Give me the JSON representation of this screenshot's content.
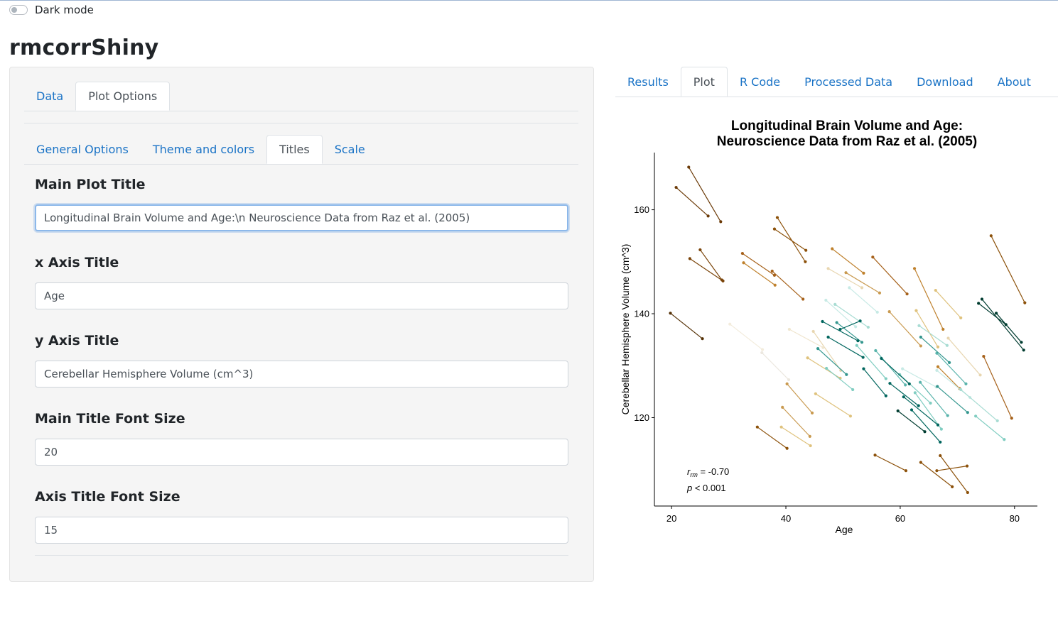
{
  "dark_mode": {
    "label": "Dark mode",
    "enabled": false
  },
  "app_title": "rmcorrShiny",
  "sidebar": {
    "tabs": [
      "Data",
      "Plot Options"
    ],
    "active_tab": "Plot Options",
    "subtabs": [
      "General Options",
      "Theme and colors",
      "Titles",
      "Scale"
    ],
    "active_subtab": "Titles",
    "fields": {
      "main_title": {
        "label": "Main Plot Title",
        "value": "Longitudinal Brain Volume and Age:\\n Neuroscience Data from Raz et al. (2005)"
      },
      "x_title": {
        "label": "x Axis Title",
        "value": "Age"
      },
      "y_title": {
        "label": "y Axis Title",
        "value": "Cerebellar Hemisphere Volume (cm^3)"
      },
      "main_font": {
        "label": "Main Title Font Size",
        "value": "20"
      },
      "axis_font": {
        "label": "Axis Title Font Size",
        "value": "15"
      }
    }
  },
  "main_tabs": [
    "Results",
    "Plot",
    "R Code",
    "Processed Data",
    "Download",
    "About"
  ],
  "active_main_tab": "Plot",
  "colors": {
    "link": "#1a73c6",
    "focus": "#8cb8ea"
  },
  "chart_data": {
    "type": "scatter",
    "title_lines": [
      "Longitudinal Brain Volume and Age:",
      "Neuroscience Data from Raz et al. (2005)"
    ],
    "xlabel": "Age",
    "ylabel": "Cerebellar Hemisphere Volume (cm^3)",
    "xlim": [
      17,
      84
    ],
    "ylim": [
      103,
      171
    ],
    "xticks": [
      20,
      40,
      60,
      80
    ],
    "yticks": [
      120,
      140,
      160
    ],
    "grid": false,
    "annotation": {
      "r_label": "r",
      "r_sub": "rm",
      "r_value": " = -0.70",
      "p_label": "p",
      "p_value": " < 0.001"
    },
    "series": [
      {
        "color": "#543005",
        "x": [
          19.8,
          25.4
        ],
        "y": [
          140.1,
          135.2
        ]
      },
      {
        "color": "#6b3a07",
        "x": [
          20.8,
          26.4
        ],
        "y": [
          164.3,
          158.8
        ]
      },
      {
        "color": "#6b3a07",
        "x": [
          23.0,
          28.6
        ],
        "y": [
          168.2,
          157.7
        ]
      },
      {
        "color": "#7a4409",
        "x": [
          25.0,
          28.8
        ],
        "y": [
          152.3,
          146.5
        ]
      },
      {
        "color": "#7a4409",
        "x": [
          23.2,
          29.0
        ],
        "y": [
          150.6,
          146.3
        ]
      },
      {
        "color": "#8c510a",
        "x": [
          38.5,
          43.4
        ],
        "y": [
          158.5,
          150.0
        ]
      },
      {
        "color": "#8c510a",
        "x": [
          38.0,
          43.5
        ],
        "y": [
          156.3,
          152.2
        ]
      },
      {
        "color": "#8c510a",
        "x": [
          35.0,
          40.2
        ],
        "y": [
          118.2,
          114.1
        ]
      },
      {
        "color": "#8c510a",
        "x": [
          55.6,
          61.0
        ],
        "y": [
          112.8,
          109.8
        ]
      },
      {
        "color": "#8c510a",
        "x": [
          63.6,
          69.1
        ],
        "y": [
          111.4,
          106.7
        ]
      },
      {
        "color": "#8c510a",
        "x": [
          67.0,
          71.8
        ],
        "y": [
          112.7,
          105.6
        ]
      },
      {
        "color": "#8c510a",
        "x": [
          66.4,
          71.7
        ],
        "y": [
          109.8,
          110.7
        ]
      },
      {
        "color": "#8c510a",
        "x": [
          75.9,
          81.8
        ],
        "y": [
          155.0,
          142.1
        ]
      },
      {
        "color": "#a6611a",
        "x": [
          74.6,
          79.5
        ],
        "y": [
          131.8,
          119.9
        ]
      },
      {
        "color": "#a6611a",
        "x": [
          32.4,
          38.0
        ],
        "y": [
          151.6,
          147.4
        ]
      },
      {
        "color": "#a6611a",
        "x": [
          37.6,
          43.0
        ],
        "y": [
          148.2,
          142.8
        ]
      },
      {
        "color": "#a6611a",
        "x": [
          55.2,
          61.2
        ],
        "y": [
          150.9,
          143.8
        ]
      },
      {
        "color": "#bf812d",
        "x": [
          48.1,
          53.6
        ],
        "y": [
          152.5,
          147.8
        ]
      },
      {
        "color": "#bf812d",
        "x": [
          32.6,
          38.1
        ],
        "y": [
          149.8,
          145.5
        ]
      },
      {
        "color": "#bf812d",
        "x": [
          62.5,
          67.5
        ],
        "y": [
          148.7,
          137.0
        ]
      },
      {
        "color": "#bf812d",
        "x": [
          66.6,
          70.4
        ],
        "y": [
          129.8,
          125.6
        ]
      },
      {
        "color": "#c99a50",
        "x": [
          50.5,
          56.4
        ],
        "y": [
          147.9,
          144.0
        ]
      },
      {
        "color": "#c99a50",
        "x": [
          58.1,
          63.6
        ],
        "y": [
          140.4,
          133.8
        ]
      },
      {
        "color": "#c99a50",
        "x": [
          40.2,
          44.6
        ],
        "y": [
          126.5,
          120.9
        ]
      },
      {
        "color": "#c99a50",
        "x": [
          39.4,
          44.2
        ],
        "y": [
          122.0,
          116.4
        ]
      },
      {
        "color": "#dfc27d",
        "x": [
          39.2,
          44.3
        ],
        "y": [
          118.2,
          114.6
        ]
      },
      {
        "color": "#dfc27d",
        "x": [
          43.8,
          49.5
        ],
        "y": [
          131.5,
          127.6
        ]
      },
      {
        "color": "#dfc27d",
        "x": [
          62.8,
          66.6
        ],
        "y": [
          140.6,
          133.6
        ]
      },
      {
        "color": "#dfc27d",
        "x": [
          66.2,
          70.6
        ],
        "y": [
          144.5,
          139.2
        ]
      },
      {
        "color": "#dfc27d",
        "x": [
          45.2,
          51.3
        ],
        "y": [
          124.6,
          120.3
        ]
      },
      {
        "color": "#e8d6b0",
        "x": [
          47.4,
          53.3
        ],
        "y": [
          148.7,
          145.0
        ]
      },
      {
        "color": "#e8d6b0",
        "x": [
          44.8,
          49.6
        ],
        "y": [
          136.6,
          129.1
        ]
      },
      {
        "color": "#e8d6b0",
        "x": [
          68.4,
          74.0
        ],
        "y": [
          135.3,
          128.2
        ]
      },
      {
        "color": "#f0e6cf",
        "x": [
          40.6,
          46.5
        ],
        "y": [
          137.0,
          133.5
        ]
      },
      {
        "color": "#f3ecdc",
        "x": [
          30.2,
          35.9
        ],
        "y": [
          138.0,
          133.1
        ]
      },
      {
        "color": "#ece8e0",
        "x": [
          35.8,
          40.5
        ],
        "y": [
          132.5,
          127.3
        ]
      },
      {
        "color": "#c7eae5",
        "x": [
          47.0,
          52.2
        ],
        "y": [
          142.6,
          137.5
        ]
      },
      {
        "color": "#c7eae5",
        "x": [
          66.4,
          72.2
        ],
        "y": [
          129.1,
          123.9
        ]
      },
      {
        "color": "#c7eae5",
        "x": [
          60.4,
          66.3
        ],
        "y": [
          129.4,
          125.9
        ]
      },
      {
        "color": "#c7eae5",
        "x": [
          51.1,
          56.0
        ],
        "y": [
          145.0,
          140.3
        ]
      },
      {
        "color": "#a8dcd3",
        "x": [
          48.6,
          54.4
        ],
        "y": [
          141.8,
          137.4
        ]
      },
      {
        "color": "#a8dcd3",
        "x": [
          63.3,
          68.2
        ],
        "y": [
          137.7,
          133.9
        ]
      },
      {
        "color": "#a8dcd3",
        "x": [
          70.6,
          77.0
        ],
        "y": [
          125.4,
          119.4
        ]
      },
      {
        "color": "#80cdc1",
        "x": [
          52.4,
          57.5
        ],
        "y": [
          133.9,
          127.5
        ]
      },
      {
        "color": "#80cdc1",
        "x": [
          59.9,
          65.3
        ],
        "y": [
          128.3,
          122.8
        ]
      },
      {
        "color": "#80cdc1",
        "x": [
          73.2,
          78.2
        ],
        "y": [
          120.3,
          115.8
        ]
      },
      {
        "color": "#80cdc1",
        "x": [
          47.1,
          51.7
        ],
        "y": [
          129.5,
          125.4
        ]
      },
      {
        "color": "#80cdc1",
        "x": [
          62.6,
          67.2
        ],
        "y": [
          124.8,
          117.8
        ]
      },
      {
        "color": "#5ab4ac",
        "x": [
          55.7,
          60.9
        ],
        "y": [
          132.9,
          126.3
        ]
      },
      {
        "color": "#5ab4ac",
        "x": [
          66.4,
          71.5
        ],
        "y": [
          132.4,
          126.5
        ]
      },
      {
        "color": "#5ab4ac",
        "x": [
          63.5,
          68.3
        ],
        "y": [
          126.8,
          120.4
        ]
      },
      {
        "color": "#35978f",
        "x": [
          63.6,
          68.6
        ],
        "y": [
          135.5,
          130.6
        ]
      },
      {
        "color": "#35978f",
        "x": [
          45.6,
          50.6
        ],
        "y": [
          133.3,
          128.3
        ]
      },
      {
        "color": "#35978f",
        "x": [
          48.9,
          53.3
        ],
        "y": [
          138.3,
          134.5
        ]
      },
      {
        "color": "#35978f",
        "x": [
          66.5,
          71.8
        ],
        "y": [
          126.0,
          121.0
        ]
      },
      {
        "color": "#01665e",
        "x": [
          46.4,
          52.6
        ],
        "y": [
          138.5,
          134.8
        ]
      },
      {
        "color": "#01665e",
        "x": [
          49.5,
          53.0
        ],
        "y": [
          137.0,
          138.6
        ]
      },
      {
        "color": "#01665e",
        "x": [
          56.7,
          61.6
        ],
        "y": [
          131.4,
          126.5
        ]
      },
      {
        "color": "#01665e",
        "x": [
          60.6,
          66.6
        ],
        "y": [
          124.0,
          118.6
        ]
      },
      {
        "color": "#01665e",
        "x": [
          47.4,
          53.5
        ],
        "y": [
          135.5,
          131.6
        ]
      },
      {
        "color": "#01665e",
        "x": [
          53.6,
          57.5
        ],
        "y": [
          129.4,
          124.2
        ]
      },
      {
        "color": "#01665e",
        "x": [
          62.0,
          67.0
        ],
        "y": [
          121.5,
          115.3
        ]
      },
      {
        "color": "#01665e",
        "x": [
          58.2,
          63.2
        ],
        "y": [
          126.6,
          122.3
        ]
      },
      {
        "color": "#003c30",
        "x": [
          73.7,
          78.5
        ],
        "y": [
          142.0,
          137.9
        ]
      },
      {
        "color": "#003c30",
        "x": [
          74.3,
          81.6
        ],
        "y": [
          142.8,
          133.0
        ]
      },
      {
        "color": "#003c30",
        "x": [
          76.8,
          81.2
        ],
        "y": [
          140.1,
          134.5
        ]
      },
      {
        "color": "#003c30",
        "x": [
          59.6,
          64.3
        ],
        "y": [
          121.3,
          117.3
        ]
      }
    ]
  }
}
